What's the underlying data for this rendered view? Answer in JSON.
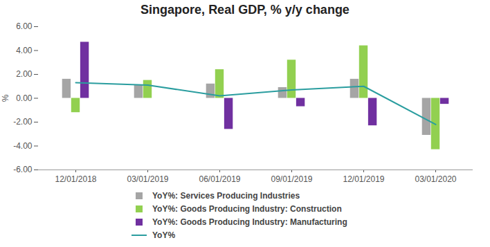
{
  "chart_data": {
    "type": "bar",
    "title": "Singapore, Real GDP, % y/y change",
    "ylabel": "%",
    "categories": [
      "12/01/2018",
      "03/01/2019",
      "06/01/2019",
      "09/01/2019",
      "12/01/2019",
      "03/01/2020"
    ],
    "series": [
      {
        "name": "YoY%: Services Producing Industries",
        "type": "bar",
        "color": "#a5a5a5",
        "values": [
          1.6,
          1.1,
          1.2,
          0.9,
          1.6,
          -3.1
        ]
      },
      {
        "name": "YoY%: Goods Producing Industry: Construction",
        "type": "bar",
        "color": "#92d050",
        "values": [
          -1.2,
          1.5,
          2.4,
          3.2,
          4.4,
          -4.3
        ]
      },
      {
        "name": "YoY%: Goods Producing Industry: Manufacturing",
        "type": "bar",
        "color": "#7030a0",
        "values": [
          4.7,
          0.0,
          -2.6,
          -0.7,
          -2.3,
          -0.5
        ]
      },
      {
        "name": "YoY%",
        "type": "line",
        "color": "#2a9d9f",
        "values": [
          1.3,
          1.1,
          0.2,
          0.7,
          1.0,
          -2.2
        ]
      }
    ],
    "ylim": [
      -6,
      6
    ],
    "yticks": [
      {
        "value": -6,
        "label": "-6.00"
      },
      {
        "value": -4,
        "label": "-4.00"
      },
      {
        "value": -2,
        "label": "-2.00"
      },
      {
        "value": 0,
        "label": "0.00"
      },
      {
        "value": 2,
        "label": "2.00"
      },
      {
        "value": 4,
        "label": "4.00"
      },
      {
        "value": 6,
        "label": "6.00"
      }
    ],
    "grid": false,
    "legend": "bottom"
  }
}
